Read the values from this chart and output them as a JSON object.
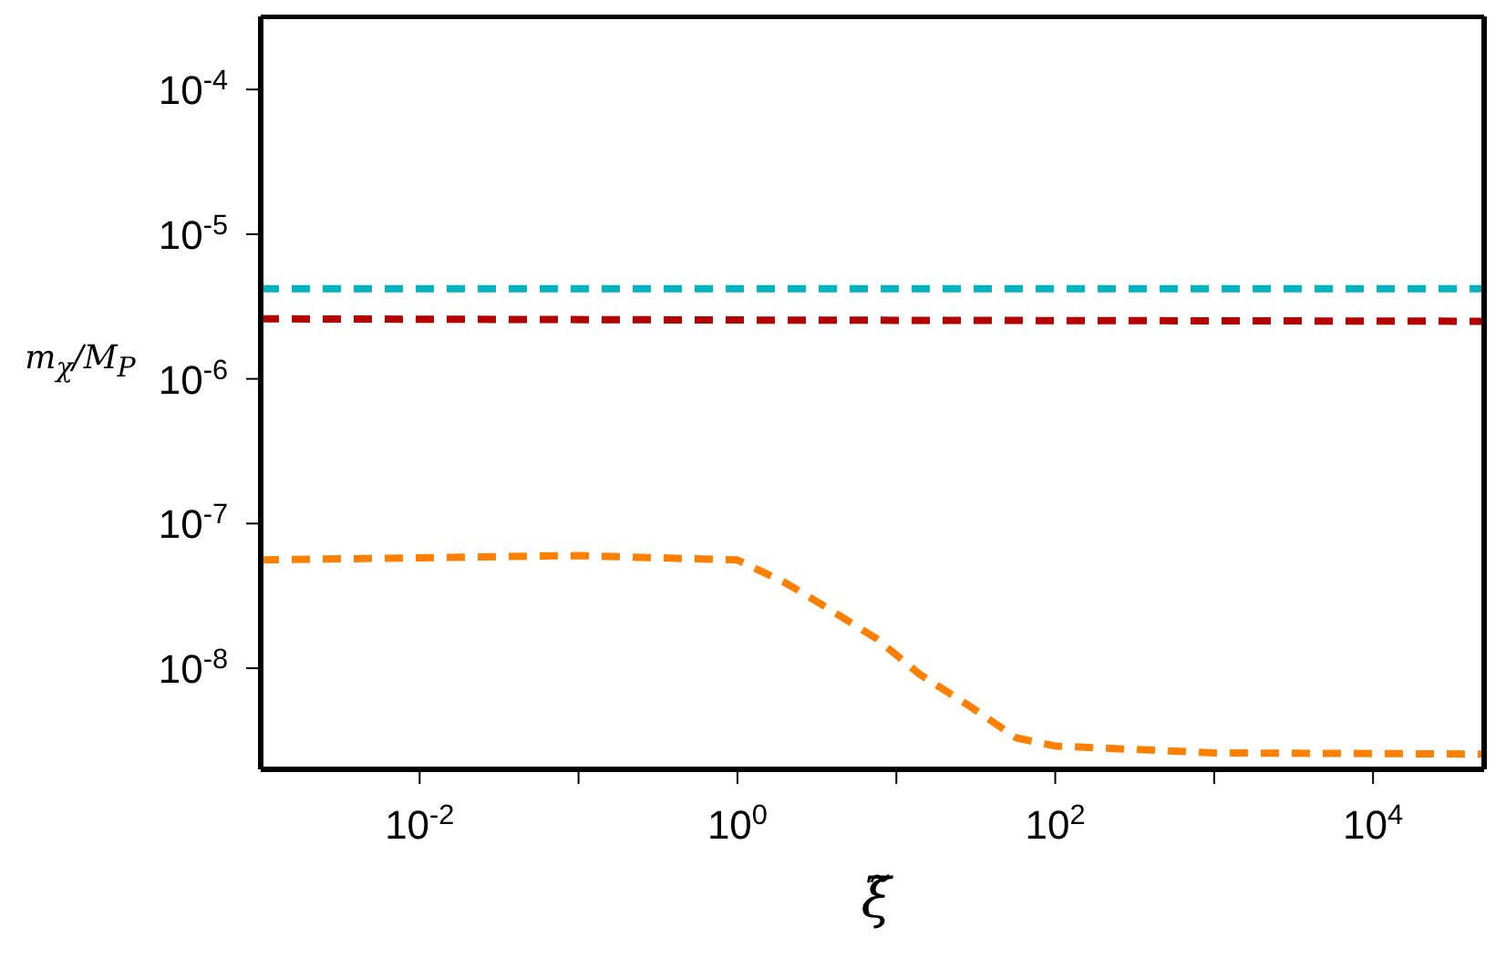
{
  "chart_data": {
    "type": "line",
    "xlabel": "ξ̃",
    "ylabel": "m$_{χ}$/M$_{P}$",
    "log": "xy",
    "line_style": "dashed",
    "marker": "none",
    "xlim": [
      0.001,
      50000
    ],
    "ylim": [
      2e-09,
      0.00032
    ],
    "xticks": [
      {
        "value": 0.01,
        "label": "10$^{-2}$"
      },
      {
        "value": 0.1,
        "label": null
      },
      {
        "value": 1,
        "label": "10$^{0}$"
      },
      {
        "value": 10,
        "label": null
      },
      {
        "value": 100,
        "label": "10$^{2}$"
      },
      {
        "value": 1000,
        "label": null
      },
      {
        "value": 10000,
        "label": "10$^{4}$"
      }
    ],
    "yticks": [
      {
        "value": 0.0001,
        "label": "10$^{-4}$"
      },
      {
        "value": 1e-05,
        "label": "10$^{-5}$"
      },
      {
        "value": 1e-06,
        "label": "10$^{-6}$"
      },
      {
        "value": 1e-07,
        "label": "10$^{-7}$"
      },
      {
        "value": 1e-08,
        "label": "10$^{-8}$"
      }
    ],
    "series": [
      {
        "color": "#00b3bf",
        "x": [
          0.001,
          50000
        ],
        "values": [
          4.2e-06,
          4.2e-06
        ]
      },
      {
        "color": "#b30000",
        "x": [
          0.001,
          1,
          50000
        ],
        "values": [
          2.6e-06,
          2.55e-06,
          2.5e-06
        ]
      },
      {
        "color": "#ff8000",
        "x": [
          0.001,
          0.01,
          0.1,
          1,
          2,
          3.7,
          7.5,
          14,
          28,
          57,
          100,
          1000,
          50000
        ],
        "values": [
          5.6e-08,
          5.8e-08,
          6e-08,
          5.6e-08,
          3.9e-08,
          2.6e-08,
          1.6e-08,
          9.1e-09,
          5.6e-09,
          3.3e-09,
          2.9e-09,
          2.6e-09,
          2.55e-09
        ]
      }
    ]
  }
}
